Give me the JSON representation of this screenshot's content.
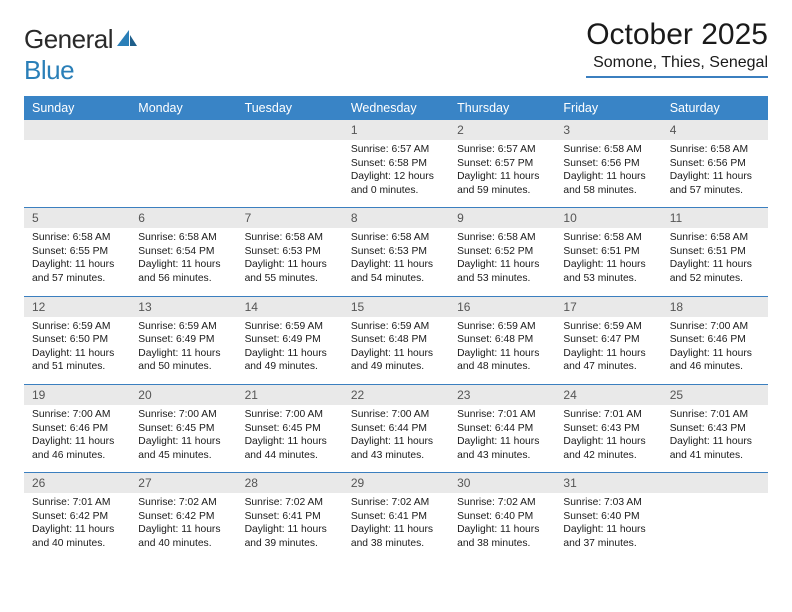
{
  "brand": {
    "word1": "General",
    "word2": "Blue"
  },
  "title": "October 2025",
  "location": "Somone, Thies, Senegal",
  "colors": {
    "header_bg": "#3984c6",
    "header_text": "#ffffff",
    "rule": "#3b7fbf",
    "daynum_bg": "#e9e9e9",
    "daynum_text": "#555555",
    "body_text": "#1a1a1a",
    "logo_gray": "#555555",
    "logo_blue": "#2a7fb8",
    "page_bg": "#ffffff"
  },
  "typography": {
    "title_fontsize": 30,
    "location_fontsize": 16,
    "weekday_fontsize": 12.5,
    "daynum_fontsize": 12,
    "cell_fontsize": 10.3
  },
  "weekdays": [
    "Sunday",
    "Monday",
    "Tuesday",
    "Wednesday",
    "Thursday",
    "Friday",
    "Saturday"
  ],
  "weeks": [
    [
      null,
      null,
      null,
      {
        "n": "1",
        "sr": "6:57 AM",
        "ss": "6:58 PM",
        "dl": "12 hours and 0 minutes."
      },
      {
        "n": "2",
        "sr": "6:57 AM",
        "ss": "6:57 PM",
        "dl": "11 hours and 59 minutes."
      },
      {
        "n": "3",
        "sr": "6:58 AM",
        "ss": "6:56 PM",
        "dl": "11 hours and 58 minutes."
      },
      {
        "n": "4",
        "sr": "6:58 AM",
        "ss": "6:56 PM",
        "dl": "11 hours and 57 minutes."
      }
    ],
    [
      {
        "n": "5",
        "sr": "6:58 AM",
        "ss": "6:55 PM",
        "dl": "11 hours and 57 minutes."
      },
      {
        "n": "6",
        "sr": "6:58 AM",
        "ss": "6:54 PM",
        "dl": "11 hours and 56 minutes."
      },
      {
        "n": "7",
        "sr": "6:58 AM",
        "ss": "6:53 PM",
        "dl": "11 hours and 55 minutes."
      },
      {
        "n": "8",
        "sr": "6:58 AM",
        "ss": "6:53 PM",
        "dl": "11 hours and 54 minutes."
      },
      {
        "n": "9",
        "sr": "6:58 AM",
        "ss": "6:52 PM",
        "dl": "11 hours and 53 minutes."
      },
      {
        "n": "10",
        "sr": "6:58 AM",
        "ss": "6:51 PM",
        "dl": "11 hours and 53 minutes."
      },
      {
        "n": "11",
        "sr": "6:58 AM",
        "ss": "6:51 PM",
        "dl": "11 hours and 52 minutes."
      }
    ],
    [
      {
        "n": "12",
        "sr": "6:59 AM",
        "ss": "6:50 PM",
        "dl": "11 hours and 51 minutes."
      },
      {
        "n": "13",
        "sr": "6:59 AM",
        "ss": "6:49 PM",
        "dl": "11 hours and 50 minutes."
      },
      {
        "n": "14",
        "sr": "6:59 AM",
        "ss": "6:49 PM",
        "dl": "11 hours and 49 minutes."
      },
      {
        "n": "15",
        "sr": "6:59 AM",
        "ss": "6:48 PM",
        "dl": "11 hours and 49 minutes."
      },
      {
        "n": "16",
        "sr": "6:59 AM",
        "ss": "6:48 PM",
        "dl": "11 hours and 48 minutes."
      },
      {
        "n": "17",
        "sr": "6:59 AM",
        "ss": "6:47 PM",
        "dl": "11 hours and 47 minutes."
      },
      {
        "n": "18",
        "sr": "7:00 AM",
        "ss": "6:46 PM",
        "dl": "11 hours and 46 minutes."
      }
    ],
    [
      {
        "n": "19",
        "sr": "7:00 AM",
        "ss": "6:46 PM",
        "dl": "11 hours and 46 minutes."
      },
      {
        "n": "20",
        "sr": "7:00 AM",
        "ss": "6:45 PM",
        "dl": "11 hours and 45 minutes."
      },
      {
        "n": "21",
        "sr": "7:00 AM",
        "ss": "6:45 PM",
        "dl": "11 hours and 44 minutes."
      },
      {
        "n": "22",
        "sr": "7:00 AM",
        "ss": "6:44 PM",
        "dl": "11 hours and 43 minutes."
      },
      {
        "n": "23",
        "sr": "7:01 AM",
        "ss": "6:44 PM",
        "dl": "11 hours and 43 minutes."
      },
      {
        "n": "24",
        "sr": "7:01 AM",
        "ss": "6:43 PM",
        "dl": "11 hours and 42 minutes."
      },
      {
        "n": "25",
        "sr": "7:01 AM",
        "ss": "6:43 PM",
        "dl": "11 hours and 41 minutes."
      }
    ],
    [
      {
        "n": "26",
        "sr": "7:01 AM",
        "ss": "6:42 PM",
        "dl": "11 hours and 40 minutes."
      },
      {
        "n": "27",
        "sr": "7:02 AM",
        "ss": "6:42 PM",
        "dl": "11 hours and 40 minutes."
      },
      {
        "n": "28",
        "sr": "7:02 AM",
        "ss": "6:41 PM",
        "dl": "11 hours and 39 minutes."
      },
      {
        "n": "29",
        "sr": "7:02 AM",
        "ss": "6:41 PM",
        "dl": "11 hours and 38 minutes."
      },
      {
        "n": "30",
        "sr": "7:02 AM",
        "ss": "6:40 PM",
        "dl": "11 hours and 38 minutes."
      },
      {
        "n": "31",
        "sr": "7:03 AM",
        "ss": "6:40 PM",
        "dl": "11 hours and 37 minutes."
      },
      null
    ]
  ],
  "labels": {
    "sunrise": "Sunrise:",
    "sunset": "Sunset:",
    "daylight": "Daylight:"
  }
}
